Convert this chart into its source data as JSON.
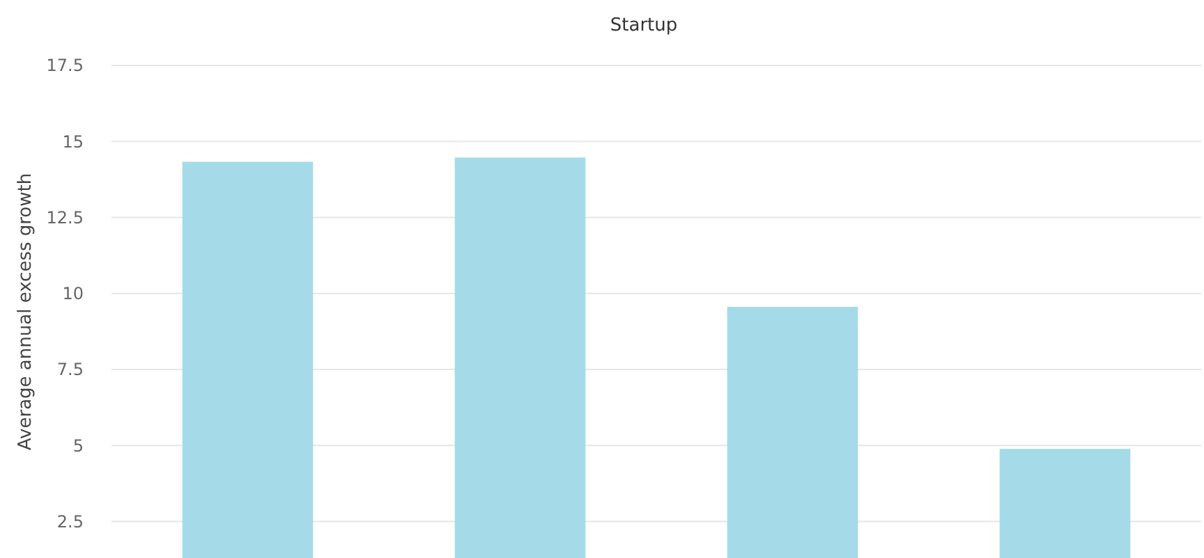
{
  "chart_data": {
    "type": "bar",
    "title": "Startup",
    "ylabel": "Average annual excess growth",
    "categories": [
      null,
      null,
      null,
      null
    ],
    "values": [
      14.33,
      14.47,
      9.56,
      4.89
    ],
    "color": "#a5dbe8",
    "ylim": [
      1.3,
      17.5
    ],
    "yticks": [
      2.5,
      5,
      7.5,
      10,
      12.5,
      15,
      17.5
    ],
    "tick_labels": "y",
    "grid": "y"
  }
}
